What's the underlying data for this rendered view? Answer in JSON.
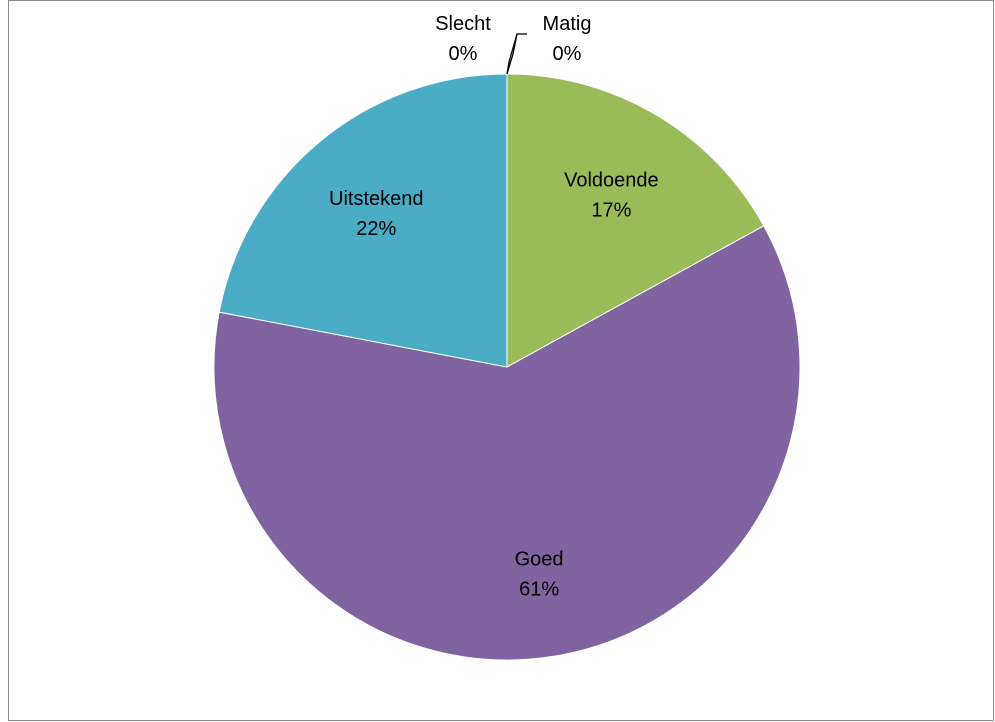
{
  "chart_data": {
    "type": "pie",
    "categories": [
      "Slecht",
      "Matig",
      "Voldoende",
      "Goed",
      "Uitstekend"
    ],
    "values": [
      0,
      0,
      17,
      61,
      22
    ],
    "value_labels": [
      "0%",
      "0%",
      "17%",
      "61%",
      "22%"
    ],
    "colors": [
      "#4f81bd",
      "#c0504d",
      "#9bbb59",
      "#8064a2",
      "#4bacc6"
    ],
    "start_angle": "12 o'clock",
    "direction": "clockwise",
    "legend": "none",
    "title": ""
  }
}
